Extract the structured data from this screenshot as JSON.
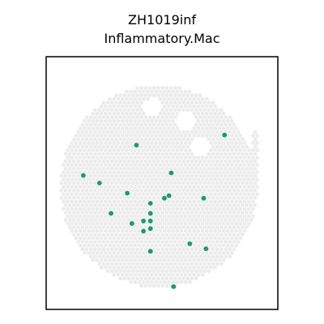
{
  "chart_data": {
    "type": "scatter",
    "title": "ZH1019inf",
    "subtitle": "Inflammatory.Mac",
    "xlabel": "",
    "ylabel": "",
    "ticks": "none",
    "grid": false,
    "xlim": [
      0,
      1
    ],
    "ylim": [
      0,
      1
    ],
    "colors": {
      "background_spots": "#ebebeb",
      "highlight": "#1a9a6e",
      "frame": "#000000"
    },
    "series": [
      {
        "values": [
          [
            0.39,
            0.65
          ],
          [
            0.16,
            0.53
          ],
          [
            0.23,
            0.5
          ],
          [
            0.35,
            0.46
          ],
          [
            0.54,
            0.54
          ],
          [
            0.51,
            0.44
          ],
          [
            0.53,
            0.45
          ],
          [
            0.45,
            0.42
          ],
          [
            0.68,
            0.44
          ],
          [
            0.28,
            0.38
          ],
          [
            0.45,
            0.38
          ],
          [
            0.45,
            0.35
          ],
          [
            0.42,
            0.35
          ],
          [
            0.37,
            0.34
          ],
          [
            0.45,
            0.32
          ],
          [
            0.42,
            0.31
          ],
          [
            0.62,
            0.26
          ],
          [
            0.69,
            0.24
          ],
          [
            0.45,
            0.23
          ],
          [
            0.55,
            0.09
          ],
          [
            0.77,
            0.69
          ]
        ]
      }
    ]
  }
}
